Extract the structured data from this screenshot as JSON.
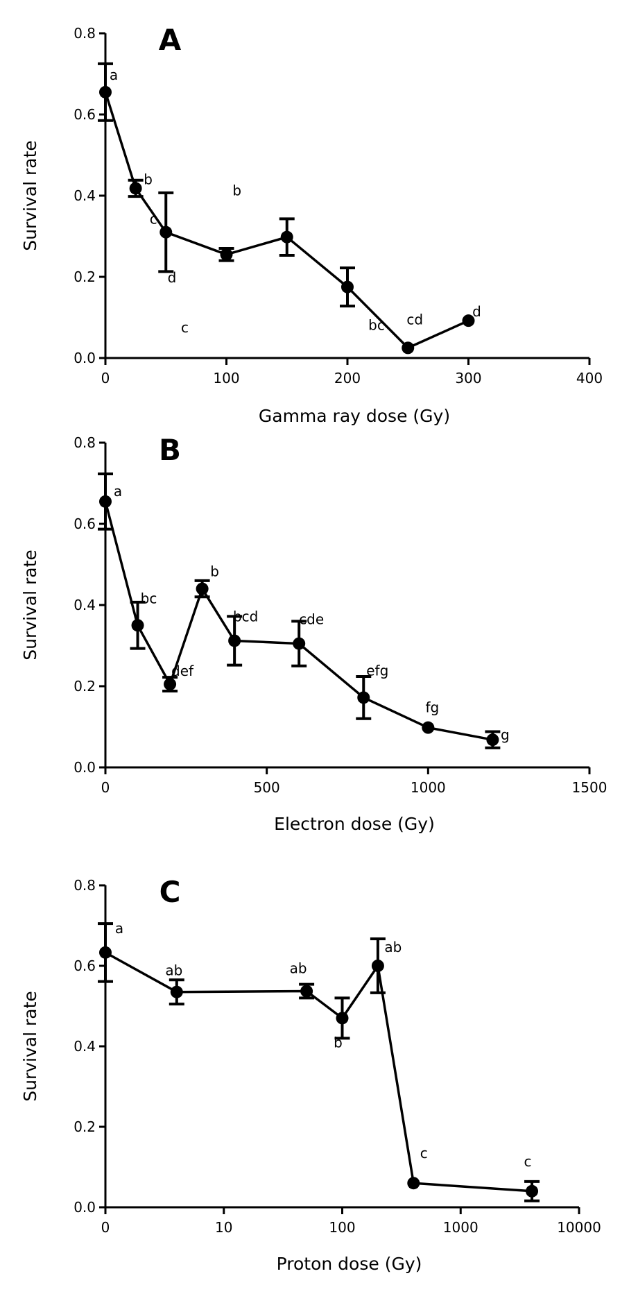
{
  "chart_data": [
    {
      "type": "line",
      "panel_label": "A",
      "xlabel": "Gamma ray dose (Gy)",
      "ylabel": "Survival rate",
      "xscale": "linear",
      "xlim": [
        0,
        400
      ],
      "ylim": [
        0,
        0.8
      ],
      "xticks": [
        0,
        100,
        200,
        300,
        400
      ],
      "xtick_labels": [
        "0",
        "100",
        "200",
        "300",
        "400"
      ],
      "yticks": [
        0,
        0.2,
        0.4,
        0.6,
        0.8
      ],
      "ytick_labels": [
        "0.0",
        "0.2",
        "0.4",
        "0.6",
        "0.8"
      ],
      "points": [
        {
          "x": 0,
          "y": 0.655,
          "err": 0.07,
          "label": "a"
        },
        {
          "x": 25,
          "y": 0.418,
          "err": 0.02,
          "label": "b"
        },
        {
          "x": 50,
          "y": 0.31,
          "err": 0.097,
          "label": "c"
        },
        {
          "x": 100,
          "y": 0.255,
          "err": 0.015,
          "label": "c"
        },
        {
          "x": 150,
          "y": 0.298,
          "err": 0.045,
          "label": "b"
        },
        {
          "x": 200,
          "y": 0.175,
          "err": 0.047,
          "label": "bc"
        },
        {
          "x": 250,
          "y": 0.025,
          "err": 0,
          "label": "cd"
        },
        {
          "x": 300,
          "y": 0.092,
          "err": 0,
          "label": "d"
        }
      ],
      "extra_labels": [
        "d"
      ]
    },
    {
      "type": "line",
      "panel_label": "B",
      "xlabel": "Electron dose (Gy)",
      "ylabel": "Survival rate",
      "xscale": "linear",
      "xlim": [
        0,
        1500
      ],
      "ylim": [
        0,
        0.8
      ],
      "xticks": [
        0,
        500,
        1000,
        1500
      ],
      "xtick_labels": [
        "0",
        "500",
        "1000",
        "1500"
      ],
      "yticks": [
        0,
        0.2,
        0.4,
        0.6,
        0.8
      ],
      "ytick_labels": [
        "0.0",
        "0.2",
        "0.4",
        "0.6",
        "0.8"
      ],
      "points": [
        {
          "x": 0,
          "y": 0.655,
          "err": 0.068,
          "label": "a"
        },
        {
          "x": 100,
          "y": 0.35,
          "err": 0.057,
          "label": "bc"
        },
        {
          "x": 200,
          "y": 0.205,
          "err": 0.017,
          "label": "def"
        },
        {
          "x": 300,
          "y": 0.44,
          "err": 0.02,
          "label": "b"
        },
        {
          "x": 400,
          "y": 0.312,
          "err": 0.06,
          "label": "bcd"
        },
        {
          "x": 600,
          "y": 0.305,
          "err": 0.055,
          "label": "cde"
        },
        {
          "x": 800,
          "y": 0.172,
          "err": 0.052,
          "label": "efg"
        },
        {
          "x": 1000,
          "y": 0.098,
          "err": 0,
          "label": "fg"
        },
        {
          "x": 1200,
          "y": 0.068,
          "err": 0.02,
          "label": "g"
        }
      ]
    },
    {
      "type": "line",
      "panel_label": "C",
      "xlabel": "Proton dose (Gy)",
      "ylabel": "Survival rate",
      "xscale": "log",
      "xlim": [
        1,
        10000
      ],
      "ylim": [
        0,
        0.8
      ],
      "xticks": [
        1,
        10,
        100,
        1000,
        10000
      ],
      "xtick_labels": [
        "0",
        "10",
        "100",
        "1000",
        "10000"
      ],
      "yticks": [
        0,
        0.2,
        0.4,
        0.6,
        0.8
      ],
      "ytick_labels": [
        "0.0",
        "0.2",
        "0.4",
        "0.6",
        "0.8"
      ],
      "points": [
        {
          "x": 1,
          "y": 0.633,
          "err": 0.072,
          "label": "a"
        },
        {
          "x": 4,
          "y": 0.535,
          "err": 0.03,
          "label": "ab"
        },
        {
          "x": 50,
          "y": 0.537,
          "err": 0.017,
          "label": "ab"
        },
        {
          "x": 100,
          "y": 0.47,
          "err": 0.05,
          "label": "b"
        },
        {
          "x": 200,
          "y": 0.6,
          "err": 0.067,
          "label": "ab"
        },
        {
          "x": 400,
          "y": 0.06,
          "err": 0,
          "label": "c"
        },
        {
          "x": 4000,
          "y": 0.04,
          "err": 0.024,
          "label": "c"
        }
      ]
    }
  ]
}
